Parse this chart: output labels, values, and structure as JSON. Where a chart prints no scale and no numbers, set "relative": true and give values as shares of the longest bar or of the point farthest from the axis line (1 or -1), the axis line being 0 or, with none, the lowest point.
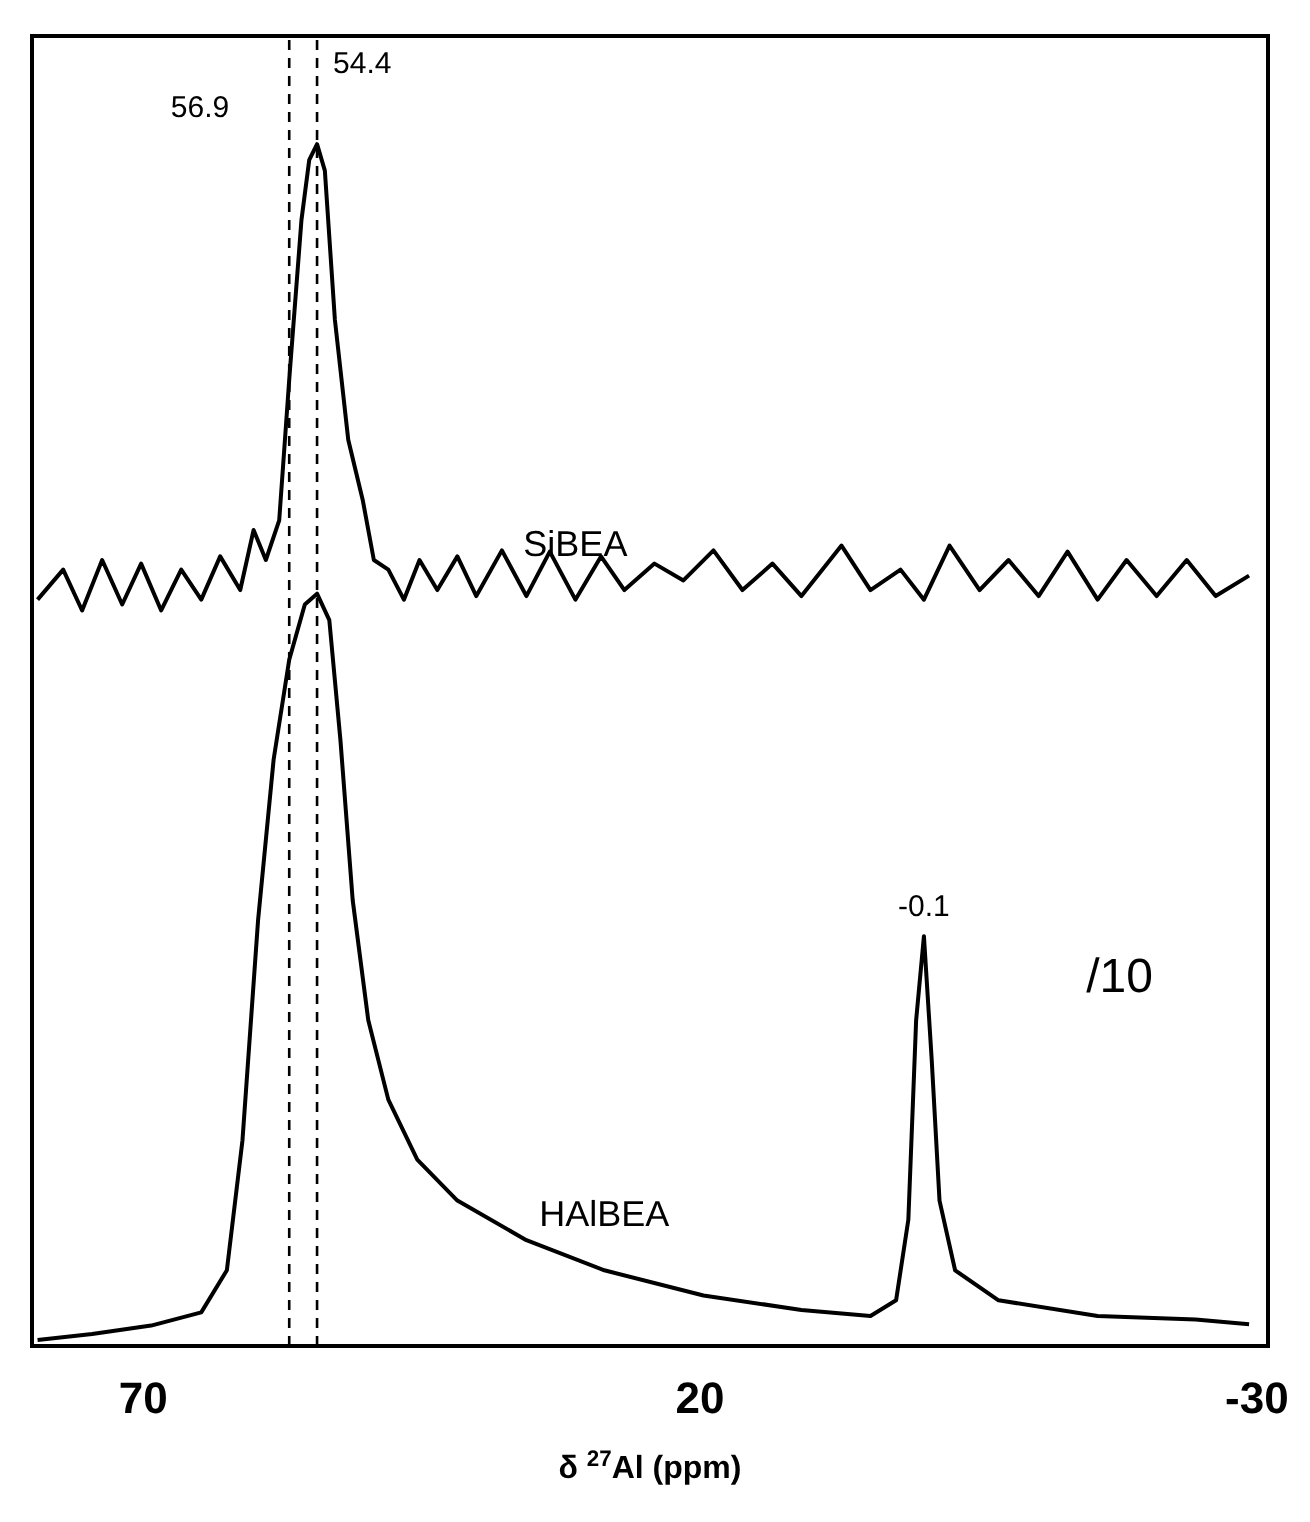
{
  "chart_data": {
    "type": "line",
    "relative": true,
    "xlabel": "δ $^{27}$Al (ppm)",
    "xlim": [
      80,
      -31
    ],
    "xticks": [
      70,
      20,
      -30
    ],
    "series": [
      {
        "name": "SiBEA",
        "color": "#000000",
        "x": [
          79.5,
          77.2,
          75.5,
          73.7,
          71.9,
          70.2,
          68.4,
          66.6,
          64.8,
          63.1,
          61.3,
          60.1,
          59.0,
          57.8,
          56.9,
          55.8,
          55.1,
          54.4,
          53.7,
          52.8,
          51.6,
          50.3,
          49.3,
          48.0,
          46.6,
          45.2,
          43.6,
          41.8,
          40.1,
          37.8,
          35.6,
          33.5,
          31.2,
          28.9,
          26.8,
          24.1,
          21.5,
          18.8,
          16.2,
          13.5,
          10.9,
          7.3,
          4.7,
          2.0,
          -0.1,
          -2.4,
          -5.1,
          -7.7,
          -10.4,
          -13.0,
          -15.7,
          -18.3,
          -21.0,
          -23.7,
          -26.3,
          -29.3
        ],
        "values": [
          0.621,
          0.646,
          0.612,
          0.654,
          0.617,
          0.651,
          0.612,
          0.646,
          0.621,
          0.657,
          0.629,
          0.679,
          0.654,
          0.687,
          0.804,
          0.937,
          0.987,
          1,
          0.978,
          0.854,
          0.754,
          0.704,
          0.654,
          0.646,
          0.621,
          0.654,
          0.629,
          0.657,
          0.624,
          0.662,
          0.624,
          0.661,
          0.621,
          0.657,
          0.629,
          0.651,
          0.637,
          0.662,
          0.629,
          0.651,
          0.624,
          0.666,
          0.629,
          0.646,
          0.621,
          0.666,
          0.629,
          0.654,
          0.624,
          0.661,
          0.621,
          0.654,
          0.624,
          0.654,
          0.624,
          0.641
        ]
      },
      {
        "name": "HAlBEA",
        "color": "#000000",
        "x": [
          79.5,
          74.6,
          69.3,
          64.8,
          62.5,
          61.1,
          59.7,
          58.3,
          56.9,
          55.5,
          54.4,
          53.3,
          52.3,
          51.2,
          49.8,
          48.0,
          45.4,
          41.8,
          35.6,
          28.6,
          19.7,
          10.9,
          4.7,
          2.4,
          1.3,
          0.6,
          -0.1,
          -0.8,
          -1.5,
          -2.9,
          -6.8,
          -15.7,
          -24.5,
          -29.3
        ],
        "values": [
          0.005,
          0.01,
          0.017,
          0.028,
          0.063,
          0.171,
          0.354,
          0.488,
          0.571,
          0.617,
          0.626,
          0.604,
          0.504,
          0.371,
          0.271,
          0.205,
          0.155,
          0.121,
          0.088,
          0.063,
          0.042,
          0.03,
          0.025,
          0.038,
          0.105,
          0.271,
          0.341,
          0.238,
          0.121,
          0.063,
          0.038,
          0.025,
          0.022,
          0.018
        ]
      }
    ],
    "ref_lines": [
      {
        "axis": "x",
        "value": 56.9,
        "label": "56.9",
        "color": "#000000",
        "line_style": "dashed"
      },
      {
        "axis": "x",
        "value": 54.4,
        "label": "54.4",
        "color": "#000000",
        "line_style": "dashed"
      }
    ],
    "annotations": [
      {
        "text": "-0.1",
        "x": -0.1,
        "y": 0.341
      },
      "/10"
    ]
  }
}
